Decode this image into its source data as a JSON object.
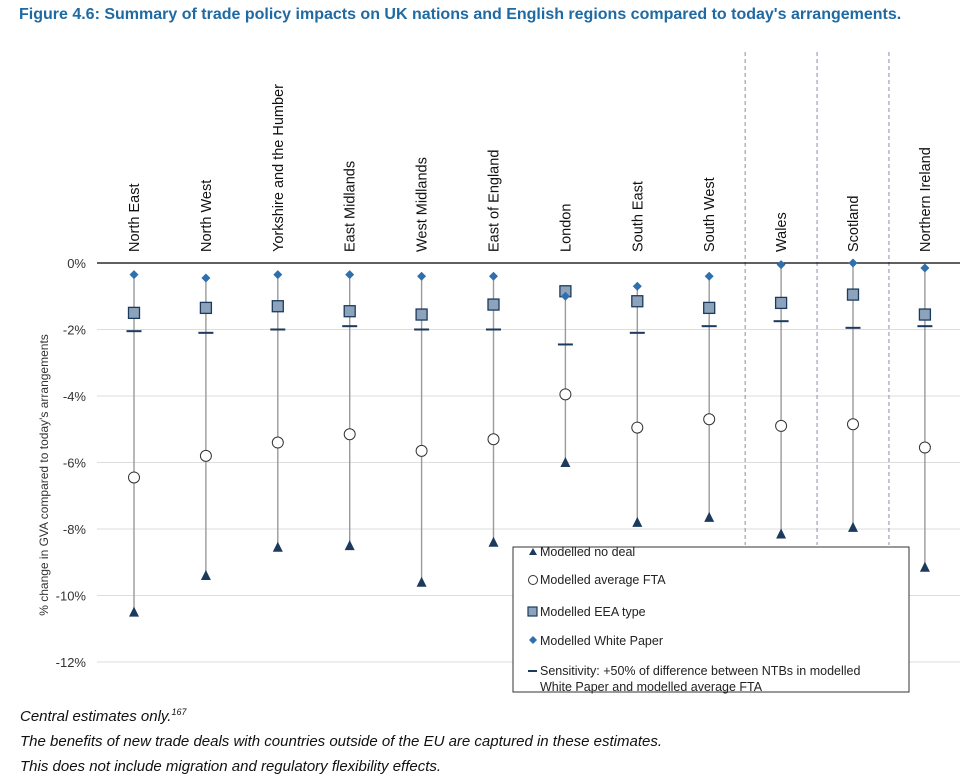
{
  "figure": {
    "title": "Figure 4.6: Summary of trade policy impacts on UK nations and English regions compared to today's arrangements."
  },
  "notes": {
    "line1": "Central estimates only.",
    "footnote": "167",
    "line2": "The benefits of new trade deals with countries outside of the EU are captured in these estimates.",
    "line3": "This does not include migration and regulatory flexibility effects."
  },
  "colors": {
    "navy": "#1c3a5e",
    "square_fill": "#8da3bb",
    "diamond": "#2e6fad",
    "grid": "#dedede",
    "axis": "#000000",
    "divider": "#8a8fa8"
  },
  "chart_data": {
    "type": "scatter",
    "title": "Summary of trade policy impacts on UK nations and English regions compared to today's arrangements.",
    "ylabel": "% change in GVA compared to today's arrangements",
    "ylim": [
      -12,
      0
    ],
    "yticks": [
      0,
      -2,
      -4,
      -6,
      -8,
      -10,
      -12
    ],
    "ytick_labels": [
      "0%",
      "-2%",
      "-4%",
      "-6%",
      "-8%",
      "-10%",
      "-12%"
    ],
    "categories": [
      "North East",
      "North West",
      "Yorkshire and the Humber",
      "East Midlands",
      "West Midlands",
      "East of England",
      "London",
      "South East",
      "South West",
      "Wales",
      "Scotland",
      "Northern Ireland"
    ],
    "divider_after": [
      8,
      9,
      10
    ],
    "series": [
      {
        "name": "Modelled no deal",
        "marker": "triangle",
        "values": [
          -10.5,
          -9.4,
          -8.55,
          -8.5,
          -9.6,
          -8.4,
          -6.0,
          -7.8,
          -7.65,
          -8.15,
          -7.95,
          -9.15
        ]
      },
      {
        "name": "Modelled average FTA",
        "marker": "circle",
        "values": [
          -6.45,
          -5.8,
          -5.4,
          -5.15,
          -5.65,
          -5.3,
          -3.95,
          -4.95,
          -4.7,
          -4.9,
          -4.85,
          -5.55
        ]
      },
      {
        "name": "Modelled EEA type",
        "marker": "square",
        "values": [
          -1.5,
          -1.35,
          -1.3,
          -1.45,
          -1.55,
          -1.25,
          -0.85,
          -1.15,
          -1.35,
          -1.2,
          -0.95,
          -1.55
        ]
      },
      {
        "name": "Modelled White Paper",
        "marker": "diamond",
        "values": [
          -0.35,
          -0.45,
          -0.35,
          -0.35,
          -0.4,
          -0.4,
          -1.0,
          -0.7,
          -0.4,
          -0.05,
          0.0,
          -0.15
        ]
      },
      {
        "name": "Sensitivity: +50% of difference between NTBs in modelled White Paper and modelled average FTA",
        "marker": "dash",
        "values": [
          -2.05,
          -2.1,
          -2.0,
          -1.9,
          -2.0,
          -2.0,
          -2.45,
          -2.1,
          -1.9,
          -1.75,
          -1.95,
          -1.9
        ]
      }
    ],
    "legend": {
      "position": "bottom-right",
      "labels": [
        "Modelled no deal",
        "Modelled average FTA",
        "Modelled EEA type",
        "Modelled White Paper"
      ],
      "sensitivity_line1": "Sensitivity: +50% of difference between NTBs in modelled",
      "sensitivity_line2": "White Paper and modelled average FTA"
    }
  }
}
